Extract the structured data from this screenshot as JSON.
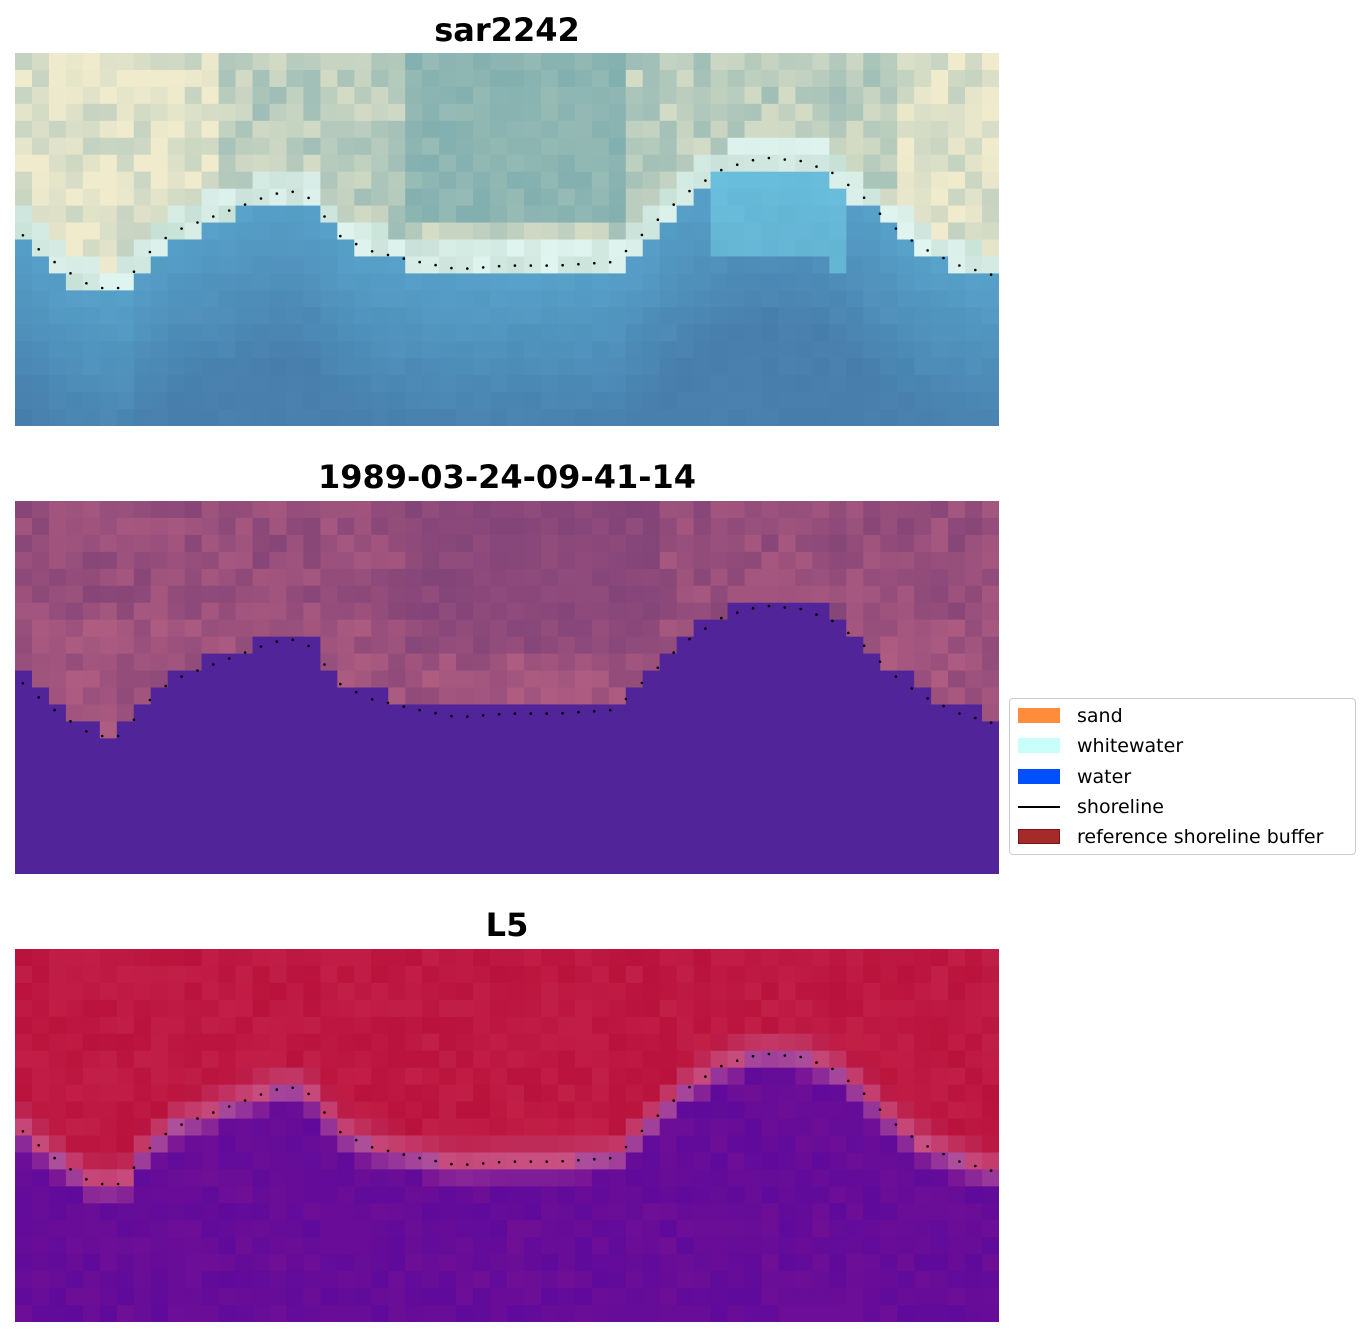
{
  "panels": [
    {
      "id": "rgb",
      "title": "sar2242"
    },
    {
      "id": "classified",
      "title": "1989-03-24-09-41-14"
    },
    {
      "id": "mndwi",
      "title": "L5"
    }
  ],
  "legend": {
    "items": [
      {
        "label": "sand",
        "type": "patch",
        "color": "#ff8c3a",
        "edge": "#ff8c3a"
      },
      {
        "label": "whitewater",
        "type": "patch",
        "color": "#c8fffa",
        "edge": "#c8fffa"
      },
      {
        "label": "water",
        "type": "patch",
        "color": "#0050ff",
        "edge": "#0050ff"
      },
      {
        "label": "shoreline",
        "type": "line",
        "color": "#000000"
      },
      {
        "label": "reference shoreline buffer",
        "type": "patch",
        "color": "#a52a2a",
        "edge": "#7a1515"
      }
    ]
  },
  "colors": {
    "classified_water": "#52249a",
    "shoreline_dots": "#000000"
  }
}
